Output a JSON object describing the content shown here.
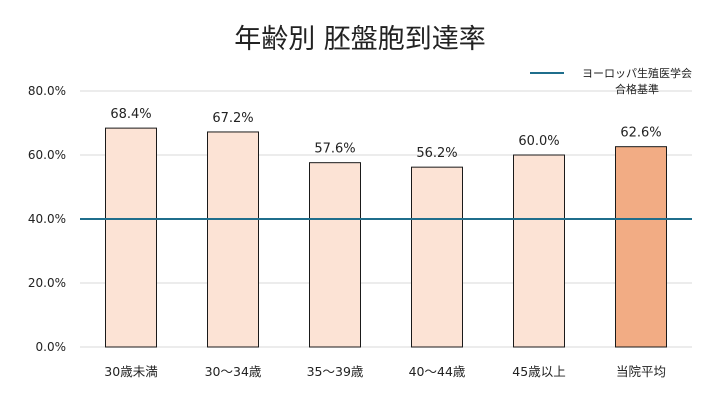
{
  "chart_data": {
    "type": "bar",
    "title": "年齢別 胚盤胞到達率",
    "xlabel": "",
    "ylabel": "",
    "categories": [
      "30歳未満",
      "30～34歳",
      "35～39歳",
      "40～44歳",
      "45歳以上",
      "当院平均"
    ],
    "values": [
      68.4,
      67.2,
      57.6,
      56.2,
      60.0,
      62.6
    ],
    "value_labels": [
      "68.4%",
      "67.2%",
      "57.6%",
      "56.2%",
      "60.0%",
      "62.6%"
    ],
    "highlight_index": 5,
    "ylim": [
      0,
      80
    ],
    "yticks": [
      0,
      20,
      40,
      60,
      80
    ],
    "ytick_labels": [
      "0.0%",
      "20.0%",
      "40.0%",
      "60.0%",
      "80.0%"
    ],
    "grid": true,
    "reference_line": {
      "name_line1": "ヨーロッパ生殖医学会",
      "name_line2": "合格基準",
      "value": 40
    },
    "legend_position": "top-right",
    "colors": {
      "bar": "#FCE3D5",
      "bar_highlight": "#F2AC84",
      "bar_stroke": "#1A1A1A",
      "reference_line": "#1F6E8C",
      "grid": "#D9D9D9"
    }
  }
}
